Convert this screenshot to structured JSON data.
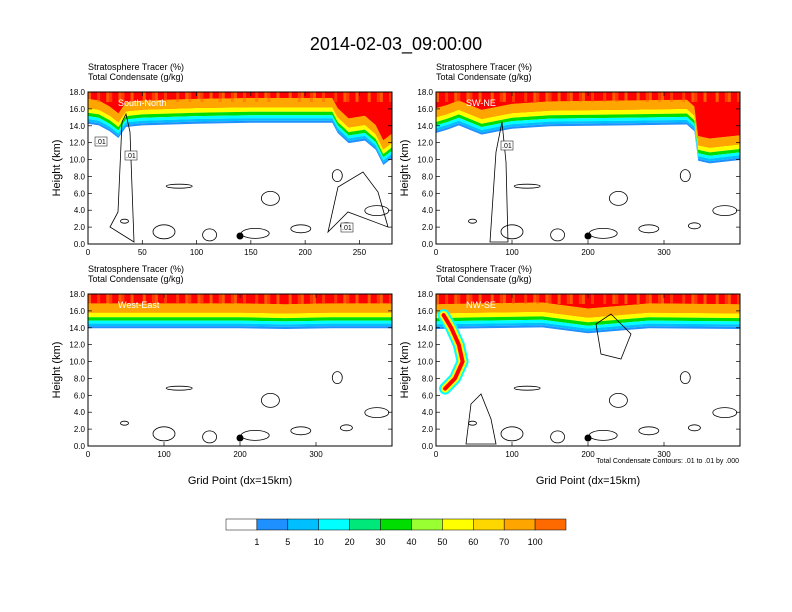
{
  "figure": {
    "title": "2014-02-03_09:00:00",
    "footnote": "Total Condensate Contours: .01 to .01 by .000"
  },
  "colors": {
    "scale": [
      "#ffffff",
      "#1e90ff",
      "#00bfff",
      "#00ffff",
      "#00e87a",
      "#00dd00",
      "#9aff32",
      "#ffff00",
      "#ffd700",
      "#ffa500",
      "#ff6a00",
      "#ff0000"
    ],
    "contour": "#000000"
  },
  "colorbar": {
    "labels": [
      "1",
      "5",
      "10",
      "20",
      "30",
      "40",
      "50",
      "60",
      "70",
      "100"
    ]
  },
  "chart_data": [
    {
      "type": "heatmap",
      "panel_label": "South-North",
      "title_lines": [
        "Stratosphere Tracer   (%)",
        "Total Condensate   (g/kg)"
      ],
      "ylabel": "Height (km)",
      "xlabel": "",
      "xlim": [
        0,
        280
      ],
      "ylim": [
        0,
        18
      ],
      "xticks": [
        "0",
        "50",
        "100",
        "150",
        "200",
        "250"
      ],
      "yticks": [
        "0.0",
        "2.0",
        "4.0",
        "6.0",
        "8.0",
        "10.0",
        "12.0",
        "14.0",
        "16.0",
        "18.0"
      ],
      "contour_labels": [
        ".01",
        ".01",
        ".01"
      ],
      "marker_x": 140,
      "tropopause_km": [
        [
          0,
          15.9
        ],
        [
          10,
          15.7
        ],
        [
          20,
          15.0
        ],
        [
          28,
          14.2
        ],
        [
          35,
          15.5
        ],
        [
          50,
          15.7
        ],
        [
          100,
          15.9
        ],
        [
          150,
          16.0
        ],
        [
          225,
          16.0
        ],
        [
          230,
          14.8
        ],
        [
          240,
          13.6
        ],
        [
          255,
          13.9
        ],
        [
          265,
          12.8
        ],
        [
          272,
          11.0
        ],
        [
          280,
          11.8
        ]
      ]
    },
    {
      "type": "heatmap",
      "panel_label": "SW-NE",
      "title_lines": [
        "Stratosphere Tracer   (%)",
        "Total Condensate   (g/kg)"
      ],
      "ylabel": "Height (km)",
      "xlabel": "",
      "xlim": [
        0,
        400
      ],
      "ylim": [
        0,
        18
      ],
      "xticks": [
        "0",
        "100",
        "200",
        "300"
      ],
      "yticks": [
        "0.0",
        "2.0",
        "4.0",
        "6.0",
        "8.0",
        "10.0",
        "12.0",
        "14.0",
        "16.0",
        "18.0"
      ],
      "contour_labels": [
        ".01"
      ],
      "marker_x": 200,
      "tropopause_km": [
        [
          0,
          14.8
        ],
        [
          15,
          15.2
        ],
        [
          30,
          15.7
        ],
        [
          60,
          14.6
        ],
        [
          100,
          15.3
        ],
        [
          150,
          15.6
        ],
        [
          250,
          15.7
        ],
        [
          330,
          15.8
        ],
        [
          340,
          15.0
        ],
        [
          345,
          11.5
        ],
        [
          360,
          11.2
        ],
        [
          400,
          11.6
        ]
      ]
    },
    {
      "type": "heatmap",
      "panel_label": "West-East",
      "title_lines": [
        "Stratosphere Tracer   (%)",
        "Total Condensate   (g/kg)"
      ],
      "ylabel": "Height (km)",
      "xlabel": "Grid Point (dx=15km)",
      "xlim": [
        0,
        400
      ],
      "ylim": [
        0,
        18
      ],
      "xticks": [
        "0",
        "100",
        "200",
        "300"
      ],
      "yticks": [
        "0.0",
        "2.0",
        "4.0",
        "6.0",
        "8.0",
        "10.0",
        "12.0",
        "14.0",
        "16.0",
        "18.0"
      ],
      "contour_labels": [],
      "marker_x": 200,
      "tropopause_km": [
        [
          0,
          15.6
        ],
        [
          50,
          15.6
        ],
        [
          120,
          15.6
        ],
        [
          200,
          15.6
        ],
        [
          260,
          15.5
        ],
        [
          320,
          15.6
        ],
        [
          400,
          15.6
        ]
      ]
    },
    {
      "type": "heatmap",
      "panel_label": "NW-SE",
      "title_lines": [
        "Stratosphere Tracer   (%)",
        "Total Condensate   (g/kg)"
      ],
      "ylabel": "Height (km)",
      "xlabel": "Grid Point (dx=15km)",
      "xlim": [
        0,
        400
      ],
      "ylim": [
        0,
        18
      ],
      "xticks": [
        "0",
        "100",
        "200",
        "300"
      ],
      "yticks": [
        "0.0",
        "2.0",
        "4.0",
        "6.0",
        "8.0",
        "10.0",
        "12.0",
        "14.0",
        "16.0",
        "18.0"
      ],
      "contour_labels": [],
      "marker_x": 200,
      "tropopause_km": [
        [
          0,
          15.5
        ],
        [
          60,
          15.6
        ],
        [
          140,
          15.7
        ],
        [
          200,
          15.0
        ],
        [
          280,
          15.6
        ],
        [
          400,
          15.5
        ]
      ],
      "intrusion_km": [
        [
          10,
          15.5
        ],
        [
          20,
          14.0
        ],
        [
          30,
          12.0
        ],
        [
          35,
          10.0
        ],
        [
          25,
          8.0
        ],
        [
          12,
          6.8
        ]
      ]
    }
  ]
}
